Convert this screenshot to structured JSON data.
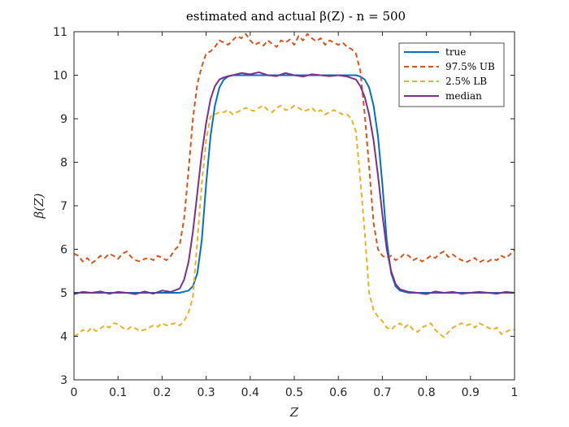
{
  "chart_data": {
    "type": "line",
    "title": "estimated and actual β(Z) - n = 500",
    "xlabel": "Z",
    "ylabel": "β(Z)",
    "xlim": [
      0,
      1
    ],
    "ylim": [
      3,
      11
    ],
    "xticks": [
      0,
      0.1,
      0.2,
      0.3,
      0.4,
      0.5,
      0.6,
      0.7,
      0.8,
      0.9,
      1
    ],
    "xtick_labels": [
      "0",
      "0.1",
      "0.2",
      "0.3",
      "0.4",
      "0.5",
      "0.6",
      "0.7",
      "0.8",
      "0.9",
      "1"
    ],
    "yticks": [
      3,
      4,
      5,
      6,
      7,
      8,
      9,
      10,
      11
    ],
    "ytick_labels": [
      "3",
      "4",
      "5",
      "6",
      "7",
      "8",
      "9",
      "10",
      "11"
    ],
    "grid": false,
    "legend_position": "top-right",
    "series": [
      {
        "name": "true",
        "color": "#0072BD",
        "dash": "solid",
        "x": [
          0,
          0.05,
          0.1,
          0.15,
          0.2,
          0.24,
          0.26,
          0.27,
          0.28,
          0.29,
          0.3,
          0.31,
          0.32,
          0.33,
          0.34,
          0.35,
          0.36,
          0.38,
          0.4,
          0.45,
          0.5,
          0.55,
          0.6,
          0.62,
          0.64,
          0.65,
          0.66,
          0.67,
          0.68,
          0.69,
          0.7,
          0.71,
          0.72,
          0.73,
          0.74,
          0.76,
          0.8,
          0.85,
          0.9,
          0.95,
          1
        ],
        "y": [
          5,
          5,
          5,
          5,
          5,
          5,
          5.05,
          5.15,
          5.45,
          6.2,
          7.5,
          8.6,
          9.3,
          9.72,
          9.9,
          9.97,
          10,
          10,
          10,
          10,
          10,
          10,
          10,
          10,
          10,
          9.97,
          9.9,
          9.72,
          9.3,
          8.6,
          7.5,
          6.2,
          5.45,
          5.15,
          5.05,
          5,
          5,
          5,
          5,
          5,
          5
        ]
      },
      {
        "name": "97.5% UB",
        "color": "#D95319",
        "dash": "dashed",
        "x": [
          0,
          0.01,
          0.02,
          0.03,
          0.04,
          0.05,
          0.06,
          0.07,
          0.08,
          0.09,
          0.1,
          0.11,
          0.12,
          0.13,
          0.14,
          0.15,
          0.16,
          0.17,
          0.18,
          0.19,
          0.2,
          0.21,
          0.22,
          0.23,
          0.24,
          0.25,
          0.26,
          0.27,
          0.28,
          0.29,
          0.3,
          0.31,
          0.32,
          0.33,
          0.34,
          0.35,
          0.36,
          0.37,
          0.38,
          0.39,
          0.4,
          0.41,
          0.42,
          0.43,
          0.44,
          0.45,
          0.46,
          0.47,
          0.48,
          0.49,
          0.5,
          0.51,
          0.52,
          0.53,
          0.54,
          0.55,
          0.56,
          0.57,
          0.58,
          0.59,
          0.6,
          0.61,
          0.62,
          0.63,
          0.64,
          0.65,
          0.66,
          0.67,
          0.68,
          0.69,
          0.7,
          0.71,
          0.72,
          0.73,
          0.74,
          0.75,
          0.76,
          0.77,
          0.78,
          0.79,
          0.8,
          0.81,
          0.82,
          0.83,
          0.84,
          0.85,
          0.86,
          0.87,
          0.88,
          0.89,
          0.9,
          0.91,
          0.92,
          0.93,
          0.94,
          0.95,
          0.96,
          0.97,
          0.98,
          0.99,
          1
        ],
        "y": [
          5.9,
          5.85,
          5.72,
          5.8,
          5.68,
          5.75,
          5.85,
          5.8,
          5.9,
          5.85,
          5.78,
          5.9,
          5.95,
          5.82,
          5.75,
          5.72,
          5.78,
          5.8,
          5.75,
          5.85,
          5.8,
          5.75,
          5.85,
          6.0,
          6.1,
          6.7,
          7.8,
          9.0,
          9.8,
          10.2,
          10.5,
          10.55,
          10.65,
          10.8,
          10.75,
          10.7,
          10.8,
          10.9,
          10.85,
          10.95,
          10.8,
          10.7,
          10.75,
          10.68,
          10.8,
          10.72,
          10.65,
          10.8,
          10.75,
          10.82,
          10.7,
          10.9,
          10.8,
          10.95,
          10.85,
          10.78,
          10.85,
          10.7,
          10.8,
          10.75,
          10.7,
          10.75,
          10.65,
          10.6,
          10.5,
          10.1,
          9.1,
          7.9,
          6.6,
          6.0,
          5.85,
          5.8,
          5.85,
          5.75,
          5.8,
          5.9,
          5.85,
          5.75,
          5.8,
          5.72,
          5.78,
          5.85,
          5.8,
          5.9,
          5.95,
          5.82,
          5.88,
          5.8,
          5.75,
          5.7,
          5.75,
          5.8,
          5.7,
          5.75,
          5.72,
          5.78,
          5.75,
          5.85,
          5.8,
          5.88,
          6.0
        ]
      },
      {
        "name": "2.5% LB",
        "color": "#EDB120",
        "dash": "dashed",
        "x": [
          0,
          0.01,
          0.02,
          0.03,
          0.04,
          0.05,
          0.06,
          0.07,
          0.08,
          0.09,
          0.1,
          0.11,
          0.12,
          0.13,
          0.14,
          0.15,
          0.16,
          0.17,
          0.18,
          0.19,
          0.2,
          0.21,
          0.22,
          0.23,
          0.24,
          0.25,
          0.26,
          0.27,
          0.28,
          0.29,
          0.3,
          0.31,
          0.32,
          0.33,
          0.34,
          0.35,
          0.36,
          0.37,
          0.38,
          0.39,
          0.4,
          0.41,
          0.42,
          0.43,
          0.44,
          0.45,
          0.46,
          0.47,
          0.48,
          0.49,
          0.5,
          0.51,
          0.52,
          0.53,
          0.54,
          0.55,
          0.56,
          0.57,
          0.58,
          0.59,
          0.6,
          0.61,
          0.62,
          0.63,
          0.64,
          0.65,
          0.66,
          0.67,
          0.68,
          0.69,
          0.7,
          0.71,
          0.72,
          0.73,
          0.74,
          0.75,
          0.76,
          0.77,
          0.78,
          0.79,
          0.8,
          0.81,
          0.82,
          0.83,
          0.84,
          0.85,
          0.86,
          0.87,
          0.88,
          0.89,
          0.9,
          0.91,
          0.92,
          0.93,
          0.94,
          0.95,
          0.96,
          0.97,
          0.98,
          0.99,
          1
        ],
        "y": [
          4.0,
          4.05,
          4.15,
          4.1,
          4.2,
          4.12,
          4.18,
          4.25,
          4.2,
          4.3,
          4.28,
          4.2,
          4.15,
          4.22,
          4.18,
          4.12,
          4.15,
          4.2,
          4.25,
          4.22,
          4.3,
          4.25,
          4.28,
          4.3,
          4.25,
          4.35,
          4.55,
          4.9,
          6.2,
          7.5,
          8.5,
          9.05,
          9.1,
          9.15,
          9.15,
          9.2,
          9.1,
          9.15,
          9.2,
          9.25,
          9.2,
          9.18,
          9.25,
          9.3,
          9.2,
          9.15,
          9.25,
          9.3,
          9.2,
          9.22,
          9.3,
          9.25,
          9.18,
          9.2,
          9.25,
          9.15,
          9.2,
          9.1,
          9.15,
          9.2,
          9.15,
          9.1,
          9.1,
          9.0,
          8.7,
          7.6,
          6.4,
          5.0,
          4.6,
          4.45,
          4.35,
          4.2,
          4.15,
          4.25,
          4.3,
          4.2,
          4.28,
          4.15,
          4.1,
          4.2,
          4.25,
          4.3,
          4.15,
          4.05,
          3.98,
          4.1,
          4.2,
          4.25,
          4.3,
          4.25,
          4.28,
          4.2,
          4.3,
          4.25,
          4.2,
          4.15,
          4.2,
          4.05,
          4.1,
          4.15,
          4.15
        ]
      },
      {
        "name": "median",
        "color": "#7E2F8E",
        "dash": "solid",
        "x": [
          0,
          0.02,
          0.04,
          0.06,
          0.08,
          0.1,
          0.12,
          0.14,
          0.16,
          0.18,
          0.2,
          0.22,
          0.24,
          0.25,
          0.26,
          0.27,
          0.28,
          0.29,
          0.3,
          0.31,
          0.32,
          0.33,
          0.34,
          0.35,
          0.36,
          0.38,
          0.4,
          0.42,
          0.44,
          0.46,
          0.48,
          0.5,
          0.52,
          0.54,
          0.56,
          0.58,
          0.6,
          0.62,
          0.64,
          0.65,
          0.66,
          0.67,
          0.68,
          0.69,
          0.7,
          0.71,
          0.72,
          0.73,
          0.74,
          0.75,
          0.76,
          0.78,
          0.8,
          0.82,
          0.84,
          0.86,
          0.88,
          0.9,
          0.92,
          0.94,
          0.96,
          0.98,
          1
        ],
        "y": [
          4.97,
          5.02,
          5.0,
          5.03,
          4.98,
          5.02,
          5.0,
          4.97,
          5.03,
          4.98,
          5.05,
          5.02,
          5.1,
          5.3,
          5.7,
          6.4,
          7.3,
          8.2,
          8.9,
          9.45,
          9.75,
          9.9,
          9.95,
          9.98,
          10.0,
          10.05,
          10.02,
          10.07,
          10.0,
          9.98,
          10.05,
          10.0,
          9.97,
          10.02,
          10.0,
          9.98,
          10.0,
          9.97,
          9.9,
          9.75,
          9.5,
          9.1,
          8.5,
          7.7,
          6.8,
          6.0,
          5.5,
          5.2,
          5.08,
          5.05,
          5.02,
          5.0,
          4.97,
          5.03,
          5.0,
          5.02,
          4.98,
          5.0,
          5.02,
          5.0,
          4.98,
          5.02,
          5.0
        ]
      }
    ]
  }
}
